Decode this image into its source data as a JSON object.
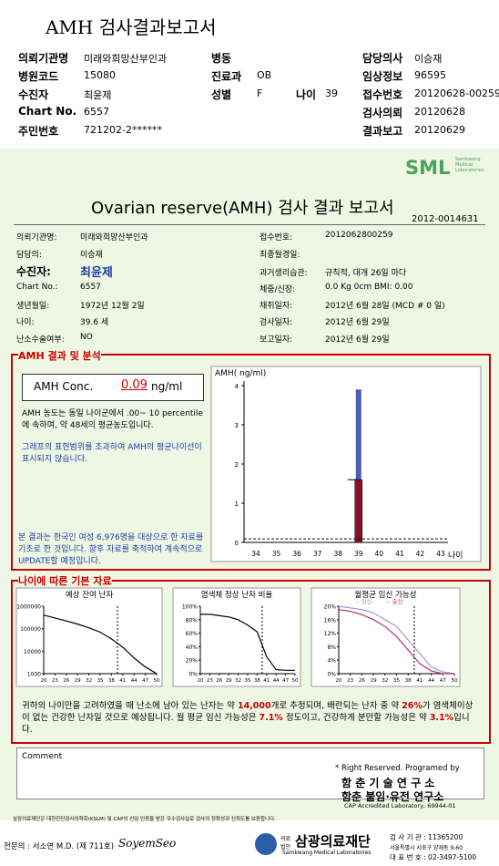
{
  "header": {
    "title": "AMH 검사결과보고서",
    "fields": [
      {
        "label": "의뢰기관명",
        "value": "미래와희망산부인과"
      },
      {
        "label": "병동"
      },
      {
        "label": "담당의사",
        "value": "이승재"
      },
      {
        "label": "병원코드",
        "value": "15080"
      },
      {
        "label": "진료과",
        "value": "OB"
      },
      {
        "label": "임상정보",
        "value": "96595"
      },
      {
        "label": "수진자",
        "value": "최윤제"
      },
      {
        "label": "성별",
        "value": "F"
      },
      {
        "label": "나이",
        "value": "39"
      },
      {
        "label": "접수번호",
        "value": "20120628-00259"
      },
      {
        "label": "Chart No.",
        "value": "6557"
      },
      {
        "label": "검사의뢰",
        "value": "20120628"
      },
      {
        "label": "주민번호",
        "value": "721202-2******"
      },
      {
        "label": "결과보고",
        "value": "20120629"
      }
    ]
  },
  "report": {
    "logo": "SML",
    "logo_sub": "Samkwang Medical Laboratories",
    "title": "Ovarian reserve(AMH) 검사 결과 보고서",
    "number": "2012-0014631",
    "info": [
      {
        "label": "의뢰기관명:",
        "value": "미래와희망산부인과"
      },
      {
        "label": "담당의:",
        "value": "이승재"
      },
      {
        "label": "수진자:",
        "value": "최윤제"
      },
      {
        "label": "Chart No.:",
        "value": "6557"
      },
      {
        "label": "생년월일:",
        "value": "1972년 12월 2일"
      },
      {
        "label": "나이:",
        "value": "39.6 세"
      },
      {
        "label": "난소수술여부:",
        "value": "NO"
      },
      {
        "label": "접수번호:",
        "value": "2012062800259"
      },
      {
        "label": "최종월경일:"
      },
      {
        "label": "과거생리습관:",
        "value": "규칙적, 대개 26일 마다"
      },
      {
        "label": "체중/신장:",
        "value": "0.0 Kg 0cm BMI: 0.00"
      },
      {
        "label": "채취일자:",
        "value": "2012년 6월 28일 (MCD # 0 일)"
      },
      {
        "label": "검사일자:",
        "value": "2012년 6월 29일"
      },
      {
        "label": "보고일자:",
        "value": "2012년 6월 29일"
      }
    ]
  },
  "amh": {
    "section_title": "AMH 결과 및 분석",
    "conc_label": "AMH Conc.",
    "conc_value": "0.09",
    "conc_unit": "ng/ml",
    "text1": "AMH 농도는 동일 나이군에서 .00~ 10 percentile에 속하며, 약 48세의 평균농도입니다.",
    "text2": "그래프의 표현범위를 초과하여 AMH의 평균나이선이 표시되지 않습니다.",
    "text3": "본 결과는 한국인 여성 6,976명을 대상으로 한 자료를 기초로 한 것입니다. 향후 자료를 축적하여 계속적으로 UPDATE할 예정입니다.",
    "chart": {
      "type": "bar",
      "ylabel": "AMH( ng/ml)",
      "xlabel": "나이",
      "categories": [
        "34",
        "35",
        "36",
        "37",
        "38",
        "39",
        "40",
        "41",
        "42",
        "43"
      ],
      "ylim": [
        0,
        4
      ],
      "yticks": [
        0,
        1,
        2,
        3,
        4
      ],
      "range_category": 5,
      "range_top": 3.9,
      "percentile_value": 1.6,
      "result_value": 0.09
    }
  },
  "basic": {
    "section_title": "나이에 따른 기본 자료",
    "charts": [
      {
        "type": "line",
        "title": "예상 잔여 난자",
        "log": true,
        "x": [
          20,
          23,
          26,
          29,
          32,
          35,
          38,
          41,
          44,
          47,
          50
        ],
        "xlim": [
          20,
          50
        ],
        "xticks": [
          20,
          23,
          26,
          29,
          32,
          35,
          38,
          41,
          44,
          47,
          50
        ],
        "ylim": [
          1000,
          1000000
        ],
        "yticks": [
          1000,
          10000,
          100000,
          1000000
        ],
        "marker_x": 39.6,
        "series": [
          {
            "color": "#000000",
            "values": [
              400000,
              300000,
              220000,
              160000,
              110000,
              70000,
              35000,
              15000,
              5000,
              2000,
              1000
            ]
          }
        ]
      },
      {
        "type": "line",
        "title": "염색체 정상 난자 비율",
        "log": false,
        "x": [
          20,
          23,
          26,
          29,
          32,
          35,
          38,
          41,
          44,
          47,
          50
        ],
        "xlim": [
          20,
          50
        ],
        "xticks": [
          20,
          23,
          26,
          29,
          32,
          35,
          38,
          41,
          44,
          47,
          50
        ],
        "ylim": [
          0,
          100
        ],
        "yticks": [
          {
            "value": 0,
            "label": "0%"
          },
          {
            "value": 20,
            "label": "20%"
          },
          {
            "value": 40,
            "label": "40%"
          },
          {
            "value": 60,
            "label": "60%"
          },
          {
            "value": 80,
            "label": "80%"
          },
          {
            "value": 100,
            "label": "100%"
          }
        ],
        "marker_x": 39.6,
        "series": [
          {
            "color": "#000000",
            "values": [
              88,
              88,
              86,
              84,
              80,
              72,
              62,
              25,
              6,
              5,
              5
            ]
          }
        ]
      },
      {
        "type": "line",
        "title": "월평균 임신 가능성",
        "log": false,
        "x": [
          20,
          23,
          26,
          29,
          32,
          35,
          38,
          41,
          44,
          47,
          50
        ],
        "xlim": [
          20,
          50
        ],
        "xticks": [
          20,
          23,
          26,
          29,
          32,
          35,
          38,
          41,
          44,
          47,
          50
        ],
        "ylim": [
          0,
          20
        ],
        "yticks": [
          {
            "value": 0,
            "label": "0%"
          },
          {
            "value": 4,
            "label": "4%"
          },
          {
            "value": 8,
            "label": "8%"
          },
          {
            "value": 12,
            "label": "12%"
          },
          {
            "value": 16,
            "label": "16%"
          },
          {
            "value": 20,
            "label": "20%"
          }
        ],
        "marker_x": 39.6,
        "series": [
          {
            "name": "-: 임신-",
            "color": "#9a9ae0",
            "values": [
              20,
              19.5,
              19,
              18,
              16,
              14,
              10,
              6,
              2,
              0.5,
              0
            ]
          },
          {
            "name": "-: 출산",
            "color": "#c0306a",
            "values": [
              19,
              18.5,
              17.5,
              16,
              14,
              11,
              7,
              3,
              0.8,
              0,
              0
            ]
          }
        ]
      }
    ],
    "summary": [
      "귀하의 나이만을 고려하였을 때 난소에 남아 있는 난자는 약 ",
      "14,000",
      "개로 추정되며, 배란되는 난자 중 약 ",
      "26%",
      "가 염색체이상이 없는 건강한 난자일 것으로 예상됩니다. 월 평균 임신 가능성은 ",
      "7.1%",
      " 정도이고, 건강하게 분만할 가능성은 약 ",
      "3.1%",
      "입니다."
    ]
  },
  "comment": {
    "label": "Comment",
    "rights": "* Right Reserved. Programed by",
    "lab1": "함 춘 기 술 연 구 소",
    "lab2": "함춘 불임·유전 연구소",
    "cap": "CAP Accredited Laboratory, 69944-01"
  },
  "footer": {
    "notice": "삼광의료재단은 대한진단검사의학회(KSLM) 및 CAP의 신임 인증을 받은 우수검사실로 검사의 정확성과 신뢰도를 보증합니다.",
    "doctor": "전문의 : 서소연 M.D. (제 711호)",
    "signature": "SoyemSeo",
    "org_type": "의료법인",
    "org": "삼광의료재단",
    "org_en": "Samkwang Medical Laboratories",
    "code": "검 사 기 관 : 11365200",
    "address": "서울특별시 서초구 양재동 9-60",
    "phone": "대 표 번 호 : 02-3497-5100"
  }
}
